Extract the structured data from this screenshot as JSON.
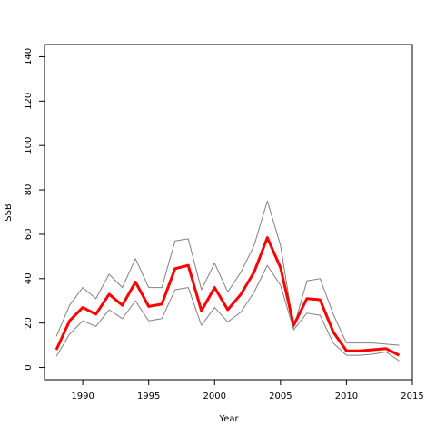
{
  "chart_data": {
    "type": "line",
    "title": "",
    "xlabel": "Year",
    "ylabel": "SSB",
    "xlim": [
      1987.1,
      2015.0
    ],
    "ylim": [
      -5.5,
      145.5
    ],
    "xticks": [
      1990,
      1995,
      2000,
      2005,
      2010,
      2015
    ],
    "yticks": [
      0,
      20,
      40,
      60,
      80,
      100,
      120,
      140
    ],
    "grid": false,
    "legend": "none",
    "x": [
      1988,
      1989,
      1990,
      1991,
      1992,
      1993,
      1994,
      1995,
      1996,
      1997,
      1998,
      1999,
      2000,
      2001,
      2002,
      2003,
      2004,
      2005,
      2006,
      2007,
      2008,
      2009,
      2010,
      2011,
      2012,
      2013,
      2014
    ],
    "series": [
      {
        "role": "upper",
        "color": "#808080",
        "values": [
          14,
          28,
          36,
          31,
          42,
          36,
          49,
          36,
          36,
          57,
          58,
          35,
          47,
          34,
          43,
          55,
          75,
          55,
          18,
          39,
          40,
          24,
          11,
          11,
          11,
          10.5,
          10
        ]
      },
      {
        "role": "estimate",
        "color": "#ff0000",
        "values": [
          8,
          21,
          27,
          24,
          33,
          28,
          38.5,
          27.5,
          28.5,
          44.5,
          46,
          25.5,
          36,
          26,
          33,
          43,
          58.5,
          45,
          19,
          31,
          30.5,
          16,
          7.5,
          7.5,
          8,
          8.5,
          5.5
        ]
      },
      {
        "role": "lower",
        "color": "#808080",
        "values": [
          5,
          15,
          21,
          18.5,
          26,
          22,
          30,
          21,
          22,
          35,
          36,
          19,
          27,
          20.5,
          25,
          34,
          46,
          37,
          17,
          24.5,
          23.5,
          11,
          5.5,
          5.5,
          6,
          7,
          3
        ]
      }
    ]
  }
}
